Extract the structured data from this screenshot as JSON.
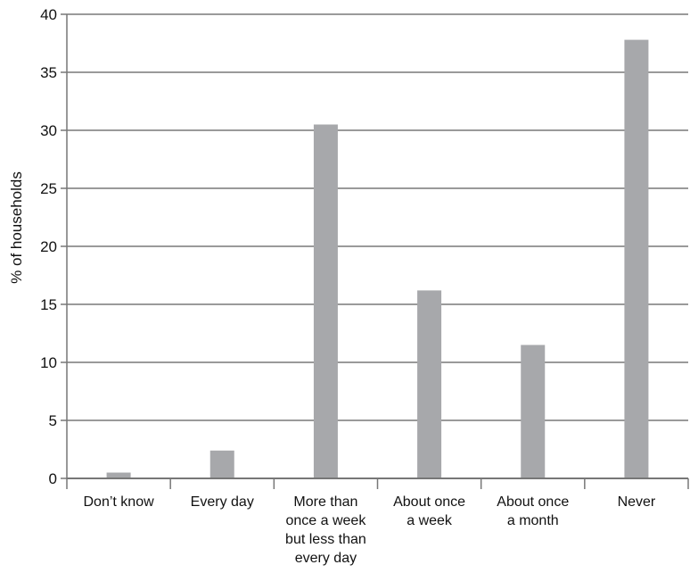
{
  "chart_data": {
    "type": "bar",
    "title": "",
    "xlabel": "",
    "ylabel": "% of households",
    "ylim": [
      0,
      40
    ],
    "yticks": [
      "0",
      "5",
      "10",
      "15",
      "20",
      "25",
      "30",
      "35",
      "40"
    ],
    "grid": true,
    "categories": [
      "Don't know",
      "Every day",
      "More than once a week but less than every day",
      "About once a week",
      "About once a month",
      "Never"
    ],
    "category_lines": [
      [
        "Don’t know"
      ],
      [
        "Every day"
      ],
      [
        "More than",
        "once a week",
        "but less than",
        "every day"
      ],
      [
        "About once",
        "a week"
      ],
      [
        "About once",
        "a month"
      ],
      [
        "Never"
      ]
    ],
    "values": [
      0.5,
      2.4,
      30.5,
      16.2,
      11.5,
      37.8
    ],
    "colors": {
      "bar": "#a7a8ab",
      "grid": "#9a9a9a",
      "axis": "#777777"
    }
  }
}
